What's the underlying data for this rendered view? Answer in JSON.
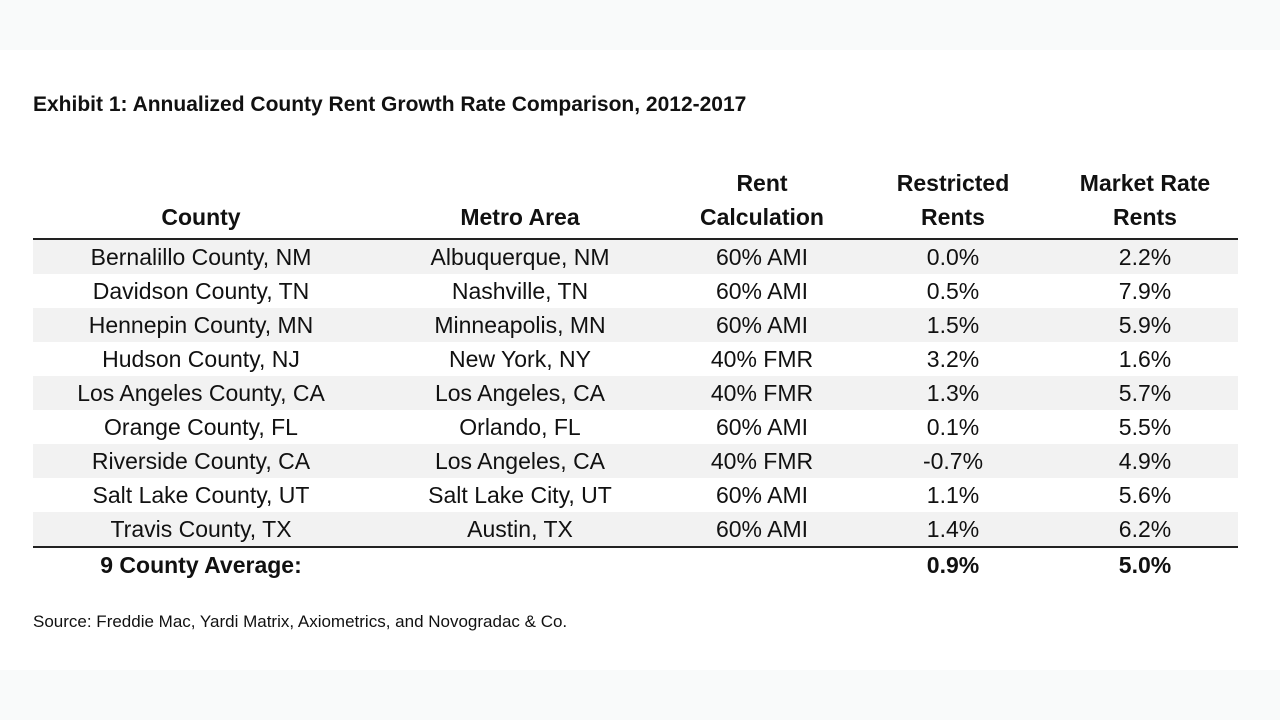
{
  "title": "Exhibit 1: Annualized County Rent Growth Rate Comparison, 2012-2017",
  "chart_data": {
    "type": "table",
    "title": "Exhibit 1: Annualized County Rent Growth Rate Comparison, 2012-2017",
    "columns": [
      {
        "line1": "",
        "line2": "County"
      },
      {
        "line1": "",
        "line2": "Metro Area"
      },
      {
        "line1": "Rent",
        "line2": "Calculation"
      },
      {
        "line1": "Restricted",
        "line2": "Rents"
      },
      {
        "line1": "Market Rate",
        "line2": "Rents"
      }
    ],
    "rows": [
      [
        "Bernalillo County, NM",
        "Albuquerque, NM",
        "60% AMI",
        "0.0%",
        "2.2%"
      ],
      [
        "Davidson County, TN",
        "Nashville, TN",
        "60% AMI",
        "0.5%",
        "7.9%"
      ],
      [
        "Hennepin County, MN",
        "Minneapolis, MN",
        "60% AMI",
        "1.5%",
        "5.9%"
      ],
      [
        "Hudson County, NJ",
        "New York, NY",
        "40% FMR",
        "3.2%",
        "1.6%"
      ],
      [
        "Los Angeles County, CA",
        "Los Angeles, CA",
        "40% FMR",
        "1.3%",
        "5.7%"
      ],
      [
        "Orange County, FL",
        "Orlando, FL",
        "60% AMI",
        "0.1%",
        "5.5%"
      ],
      [
        "Riverside County, CA",
        "Los Angeles, CA",
        "40% FMR",
        "-0.7%",
        "4.9%"
      ],
      [
        "Salt Lake County, UT",
        "Salt Lake City, UT",
        "60% AMI",
        "1.1%",
        "5.6%"
      ],
      [
        "Travis County, TX",
        "Austin, TX",
        "60% AMI",
        "1.4%",
        "6.2%"
      ]
    ],
    "average": {
      "label": "9 County Average:",
      "restricted": "0.9%",
      "market": "5.0%"
    }
  },
  "source": "Source: Freddie Mac, Yardi Matrix, Axiometrics, and Novogradac & Co."
}
